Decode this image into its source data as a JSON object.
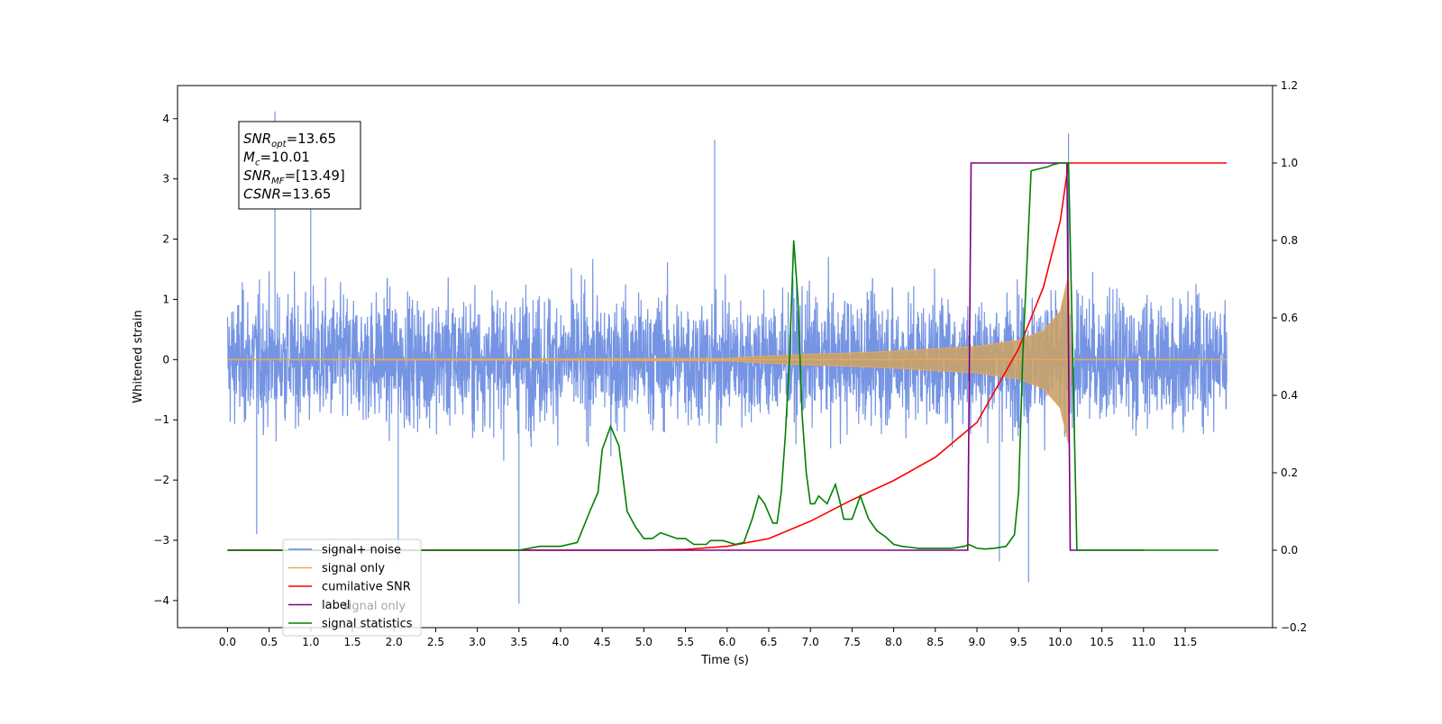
{
  "chart_data": {
    "type": "line",
    "xlabel": "Time (s)",
    "ylabel": "Whitened strain",
    "xlim": [
      -0.6,
      12.55
    ],
    "ylim": [
      -4.45,
      4.55
    ],
    "y2lim": [
      -0.2,
      1.2
    ],
    "x_ticks": [
      "0.0",
      "0.5",
      "1.0",
      "1.5",
      "2.0",
      "2.5",
      "3.0",
      "3.5",
      "4.0",
      "4.5",
      "5.0",
      "5.5",
      "6.0",
      "6.5",
      "7.0",
      "7.5",
      "8.0",
      "8.5",
      "9.0",
      "9.5",
      "10.0",
      "10.5",
      "11.0",
      "11.5"
    ],
    "y_ticks": [
      "4",
      "3",
      "2",
      "1",
      "0",
      "−1",
      "−2",
      "−3",
      "−4"
    ],
    "y2_ticks": [
      "1.2",
      "1.0",
      "0.8",
      "0.6",
      "0.4",
      "0.2",
      "0.0",
      "−0.2"
    ],
    "grid": false,
    "legend_position": "lower-left",
    "annotation": {
      "lines": [
        {
          "sym": "SNR",
          "sub": "opt",
          "val": "=13.65"
        },
        {
          "sym": "M",
          "sub": "c",
          "val": "=10.01"
        },
        {
          "sym": "SNR",
          "sub": "MF",
          "val": "=[13.49]"
        },
        {
          "sym": "CSNR",
          "sub": "",
          "val": "=13.65"
        }
      ]
    },
    "legend_hidden_text": "signal only",
    "series": [
      {
        "name": "signal+ noise",
        "color": "#6688e0",
        "axis": "left",
        "kind": "noise",
        "x_range": [
          0.0,
          12.0
        ],
        "approx_envelope": [
          -2.0,
          2.0
        ],
        "spikes": [
          [
            0.57,
            4.12
          ],
          [
            1.0,
            3.05
          ],
          [
            3.5,
            -4.05
          ],
          [
            5.85,
            3.65
          ],
          [
            9.27,
            -3.35
          ],
          [
            9.62,
            -3.7
          ],
          [
            10.1,
            3.75
          ],
          [
            2.05,
            -3.35
          ],
          [
            0.35,
            -2.9
          ]
        ]
      },
      {
        "name": "signal only",
        "color": "#e7a95a",
        "axis": "left",
        "kind": "chirp",
        "points": [
          [
            0.0,
            0.0
          ],
          [
            6.0,
            0.02
          ],
          [
            6.5,
            0.06
          ],
          [
            7.0,
            0.09
          ],
          [
            7.5,
            0.11
          ],
          [
            8.0,
            0.14
          ],
          [
            8.5,
            0.18
          ],
          [
            9.0,
            0.22
          ],
          [
            9.5,
            0.32
          ],
          [
            9.8,
            0.48
          ],
          [
            10.0,
            0.8
          ],
          [
            10.1,
            1.4
          ],
          [
            10.13,
            0.0
          ],
          [
            12.0,
            0.0
          ]
        ]
      },
      {
        "name": "cumilative SNR",
        "color": "#ff0000",
        "axis": "right",
        "points": [
          [
            0.0,
            0.0
          ],
          [
            5.0,
            0.0
          ],
          [
            5.5,
            0.002
          ],
          [
            6.0,
            0.01
          ],
          [
            6.5,
            0.03
          ],
          [
            7.0,
            0.075
          ],
          [
            7.5,
            0.13
          ],
          [
            8.0,
            0.18
          ],
          [
            8.5,
            0.24
          ],
          [
            9.0,
            0.33
          ],
          [
            9.5,
            0.52
          ],
          [
            9.8,
            0.68
          ],
          [
            10.0,
            0.85
          ],
          [
            10.1,
            1.0
          ],
          [
            11.0,
            1.0
          ],
          [
            12.0,
            1.0
          ]
        ]
      },
      {
        "name": "label",
        "color": "#800080",
        "axis": "right",
        "points": [
          [
            0.0,
            0.0
          ],
          [
            8.89,
            0.0
          ],
          [
            8.93,
            1.0
          ],
          [
            10.08,
            1.0
          ],
          [
            10.12,
            0.0
          ],
          [
            11.0,
            0.0
          ]
        ]
      },
      {
        "name": "signal statistics",
        "color": "#008000",
        "axis": "right",
        "points": [
          [
            0.0,
            0.0
          ],
          [
            1.0,
            0.0
          ],
          [
            2.0,
            0.0
          ],
          [
            3.0,
            0.0
          ],
          [
            3.5,
            0.0
          ],
          [
            3.75,
            0.01
          ],
          [
            4.0,
            0.01
          ],
          [
            4.2,
            0.02
          ],
          [
            4.35,
            0.1
          ],
          [
            4.45,
            0.15
          ],
          [
            4.5,
            0.26
          ],
          [
            4.6,
            0.32
          ],
          [
            4.7,
            0.27
          ],
          [
            4.8,
            0.1
          ],
          [
            4.9,
            0.06
          ],
          [
            5.0,
            0.03
          ],
          [
            5.1,
            0.03
          ],
          [
            5.2,
            0.045
          ],
          [
            5.4,
            0.03
          ],
          [
            5.5,
            0.03
          ],
          [
            5.6,
            0.015
          ],
          [
            5.75,
            0.015
          ],
          [
            5.8,
            0.025
          ],
          [
            5.95,
            0.025
          ],
          [
            6.1,
            0.015
          ],
          [
            6.2,
            0.02
          ],
          [
            6.3,
            0.08
          ],
          [
            6.38,
            0.14
          ],
          [
            6.45,
            0.12
          ],
          [
            6.55,
            0.07
          ],
          [
            6.6,
            0.07
          ],
          [
            6.65,
            0.15
          ],
          [
            6.7,
            0.3
          ],
          [
            6.75,
            0.5
          ],
          [
            6.8,
            0.8
          ],
          [
            6.85,
            0.65
          ],
          [
            6.9,
            0.35
          ],
          [
            6.95,
            0.2
          ],
          [
            7.0,
            0.12
          ],
          [
            7.05,
            0.12
          ],
          [
            7.1,
            0.14
          ],
          [
            7.2,
            0.12
          ],
          [
            7.3,
            0.17
          ],
          [
            7.35,
            0.13
          ],
          [
            7.4,
            0.08
          ],
          [
            7.5,
            0.08
          ],
          [
            7.6,
            0.14
          ],
          [
            7.7,
            0.08
          ],
          [
            7.8,
            0.05
          ],
          [
            7.9,
            0.035
          ],
          [
            8.0,
            0.015
          ],
          [
            8.1,
            0.01
          ],
          [
            8.3,
            0.005
          ],
          [
            8.5,
            0.005
          ],
          [
            8.7,
            0.005
          ],
          [
            8.85,
            0.01
          ],
          [
            8.9,
            0.015
          ],
          [
            9.0,
            0.005
          ],
          [
            9.1,
            0.003
          ],
          [
            9.2,
            0.005
          ],
          [
            9.35,
            0.01
          ],
          [
            9.45,
            0.04
          ],
          [
            9.5,
            0.15
          ],
          [
            9.55,
            0.5
          ],
          [
            9.65,
            0.98
          ],
          [
            9.75,
            0.985
          ],
          [
            9.85,
            0.99
          ],
          [
            9.9,
            0.995
          ],
          [
            10.0,
            1.0
          ],
          [
            10.05,
            1.0
          ],
          [
            10.1,
            1.0
          ],
          [
            10.15,
            0.5
          ],
          [
            10.2,
            0.0
          ],
          [
            11.0,
            0.0
          ],
          [
            11.9,
            0.0
          ]
        ]
      }
    ]
  }
}
